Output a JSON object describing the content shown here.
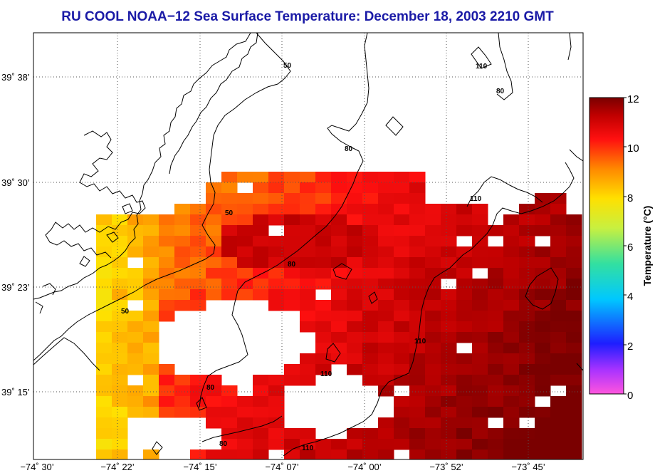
{
  "title": "RU COOL  NOAA−12  Sea Surface Temperature:  December 18, 2003 2210 GMT",
  "map": {
    "lon_ticks": [
      "−74˚ 30’",
      "−74˚ 22’",
      "−74˚ 15’",
      "−74˚ 07’",
      "−74˚ 00’",
      "−73˚ 52’",
      "−73˚ 45’"
    ],
    "lat_ticks": [
      "39˚ 38’",
      "39˚ 30’",
      "39˚ 23’",
      "39˚ 15’"
    ],
    "grid": true,
    "colors": {
      "land": "#ffffff",
      "no_data": "#ffffff",
      "contour": "#000000",
      "title": "#1a1aa6"
    },
    "isobath_labels": [
      "50",
      "50",
      "50",
      "80",
      "80",
      "80",
      "80",
      "80",
      "110",
      "110",
      "110",
      "110",
      "110"
    ]
  },
  "colorbar": {
    "label": "Temperature (°C)",
    "ticks": [
      "12",
      "10",
      "8",
      "6",
      "4",
      "2",
      "0"
    ],
    "range": [
      0,
      12
    ],
    "stops": [
      "#ff55dd",
      "#2211ff",
      "#00bfff",
      "#33e0a0",
      "#c8f040",
      "#ffe000",
      "#ff8800",
      "#ff1010",
      "#c00000",
      "#7a0000"
    ]
  }
}
